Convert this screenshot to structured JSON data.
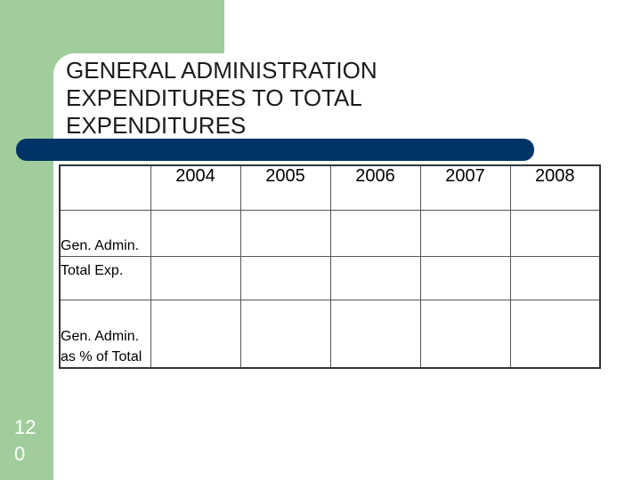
{
  "slide": {
    "title": "GENERAL ADMINISTRATION EXPENDITURES TO TOTAL EXPENDITURES",
    "number": "12 0"
  },
  "table": {
    "corner": "",
    "columns": [
      "2004",
      "2005",
      "2006",
      "2007",
      "2008"
    ],
    "rows": [
      {
        "label": "Gen. Admin.",
        "cells": [
          "",
          "",
          "",
          "",
          ""
        ]
      },
      {
        "label": "Total Exp.",
        "cells": [
          "",
          "",
          "",
          "",
          ""
        ]
      },
      {
        "label": "Gen. Admin. as % of Total",
        "cells": [
          "",
          "",
          "",
          "",
          ""
        ]
      }
    ]
  },
  "colors": {
    "accent_green": "#a1cd9c",
    "bar_navy": "#003366"
  }
}
